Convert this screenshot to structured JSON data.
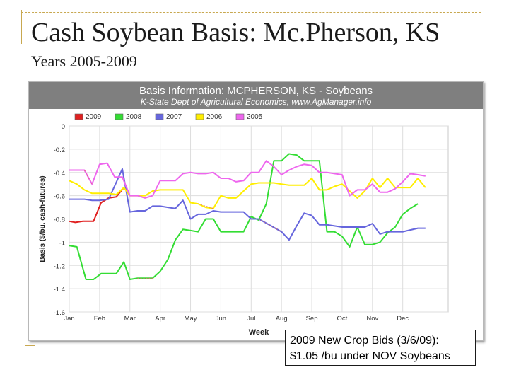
{
  "slide": {
    "title": "Cash Soybean Basis: Mc.Pherson, KS",
    "subtitle": "Years 2005-2009"
  },
  "note": {
    "line1": "2009 New Crop Bids (3/6/09):",
    "line2": "$1.05 /bu under NOV Soybeans"
  },
  "chart_data": {
    "type": "line",
    "title": "Basis Information: MCPHERSON, KS - Soybeans",
    "subtitle": "K-State Dept of Agricultural Economics, www.AgManager.info",
    "xlabel": "Week",
    "ylabel": "Basis ($/bu. cash-futures)",
    "x_tick_labels": [
      "Jan",
      "Feb",
      "Mar",
      "Apr",
      "May",
      "Jun",
      "Jul",
      "Aug",
      "Sep",
      "Oct",
      "Nov",
      "Dec"
    ],
    "y_ticks": [
      0,
      -0.2,
      -0.4,
      -0.6,
      -0.8,
      -1,
      -1.2,
      -1.4,
      -1.6
    ],
    "y_tick_labels": [
      "0",
      "-0.2",
      "-0.4",
      "-0.6",
      "-0.8",
      "-1",
      "-1.2",
      "-1.4",
      "-1.6"
    ],
    "xlim": [
      0,
      12.5
    ],
    "ylim": [
      -1.6,
      0
    ],
    "grid": true,
    "legend_position": "top",
    "series": [
      {
        "name": "2009",
        "color": "#e02020",
        "points": [
          [
            0,
            -0.82
          ],
          [
            0.2,
            -0.83
          ],
          [
            0.45,
            -0.82
          ],
          [
            0.8,
            -0.82
          ],
          [
            1.05,
            -0.66
          ],
          [
            1.3,
            -0.62
          ],
          [
            1.55,
            -0.61
          ],
          [
            1.8,
            -0.53
          ]
        ],
        "dashed": []
      },
      {
        "name": "2008",
        "color": "#33dd33",
        "points": [
          [
            0,
            -1.03
          ],
          [
            0.25,
            -1.04
          ],
          [
            0.55,
            -1.32
          ],
          [
            0.8,
            -1.32
          ],
          [
            1.05,
            -1.27
          ],
          [
            1.3,
            -1.27
          ],
          [
            1.55,
            -1.27
          ],
          [
            1.8,
            -1.17
          ],
          [
            2,
            -1.32
          ],
          [
            2.25,
            -1.31
          ],
          [
            2.75,
            -1.31
          ],
          [
            3,
            -1.25
          ],
          [
            3.25,
            -1.15
          ],
          [
            3.5,
            -0.98
          ],
          [
            3.75,
            -0.89
          ],
          [
            4,
            -0.9
          ],
          [
            4.25,
            -0.91
          ],
          [
            4.5,
            -0.8
          ],
          [
            4.75,
            -0.8
          ],
          [
            5,
            -0.91
          ],
          [
            5.25,
            -0.91
          ],
          [
            5.5,
            -0.91
          ],
          [
            5.75,
            -0.91
          ],
          [
            6,
            -0.78
          ],
          [
            6.25,
            -0.81
          ],
          [
            6.5,
            -0.67
          ],
          [
            6.75,
            -0.3
          ],
          [
            7,
            -0.3
          ],
          [
            7.25,
            -0.24
          ],
          [
            7.5,
            -0.25
          ],
          [
            7.75,
            -0.3
          ],
          [
            8,
            -0.3
          ],
          [
            8.25,
            -0.3
          ],
          [
            8.5,
            -0.91
          ],
          [
            8.75,
            -0.91
          ],
          [
            9,
            -0.95
          ],
          [
            9.25,
            -1.04
          ],
          [
            9.5,
            -0.87
          ],
          [
            9.75,
            -1.02
          ],
          [
            10,
            -1.02
          ],
          [
            10.25,
            -1.0
          ],
          [
            10.5,
            -0.92
          ],
          [
            10.75,
            -0.87
          ],
          [
            11,
            -0.76
          ],
          [
            11.25,
            -0.71
          ],
          [
            11.5,
            -0.67
          ]
        ],
        "dashed": [
          [
            2.25,
            -1.31
          ],
          [
            2.75,
            -1.31
          ]
        ]
      },
      {
        "name": "2007",
        "color": "#6666dd",
        "points": [
          [
            0,
            -0.63
          ],
          [
            0.5,
            -0.63
          ],
          [
            0.75,
            -0.64
          ],
          [
            1,
            -0.64
          ],
          [
            1.3,
            -0.63
          ],
          [
            1.75,
            -0.37
          ],
          [
            2,
            -0.74
          ],
          [
            2.25,
            -0.73
          ],
          [
            2.5,
            -0.73
          ],
          [
            2.75,
            -0.69
          ],
          [
            3,
            -0.69
          ],
          [
            3.25,
            -0.7
          ],
          [
            3.5,
            -0.71
          ],
          [
            3.75,
            -0.64
          ],
          [
            4,
            -0.8
          ],
          [
            4.25,
            -0.76
          ],
          [
            4.5,
            -0.76
          ],
          [
            4.75,
            -0.73
          ],
          [
            5,
            -0.74
          ],
          [
            5.25,
            -0.74
          ],
          [
            5.5,
            -0.74
          ],
          [
            5.75,
            -0.74
          ],
          [
            6,
            -0.8
          ],
          [
            6.25,
            -0.8
          ],
          [
            7,
            -0.91
          ],
          [
            7.25,
            -0.98
          ],
          [
            7.5,
            -0.86
          ],
          [
            7.75,
            -0.75
          ],
          [
            8,
            -0.77
          ],
          [
            8.25,
            -0.85
          ],
          [
            8.5,
            -0.85
          ],
          [
            8.75,
            -0.86
          ],
          [
            9,
            -0.87
          ],
          [
            9.25,
            -0.87
          ],
          [
            9.5,
            -0.87
          ],
          [
            9.75,
            -0.87
          ],
          [
            10,
            -0.84
          ],
          [
            10.25,
            -0.93
          ],
          [
            10.5,
            -0.91
          ],
          [
            10.75,
            -0.91
          ],
          [
            11,
            -0.91
          ],
          [
            11.5,
            -0.88
          ],
          [
            11.75,
            -0.88
          ]
        ],
        "dashed": [
          [
            6.25,
            -0.8
          ],
          [
            7,
            -0.91
          ]
        ]
      },
      {
        "name": "2006",
        "color": "#ffee00",
        "points": [
          [
            0,
            -0.47
          ],
          [
            0.25,
            -0.5
          ],
          [
            0.5,
            -0.55
          ],
          [
            0.75,
            -0.58
          ],
          [
            1,
            -0.58
          ],
          [
            1.3,
            -0.58
          ],
          [
            1.55,
            -0.59
          ],
          [
            1.8,
            -0.53
          ],
          [
            2,
            -0.6
          ],
          [
            2.5,
            -0.6
          ],
          [
            2.75,
            -0.56
          ],
          [
            3,
            -0.55
          ],
          [
            3.25,
            -0.55
          ],
          [
            3.5,
            -0.55
          ],
          [
            3.75,
            -0.55
          ],
          [
            4,
            -0.66
          ],
          [
            4.25,
            -0.67
          ],
          [
            4.5,
            -0.7
          ],
          [
            4.75,
            -0.71
          ],
          [
            5,
            -0.6
          ],
          [
            5.25,
            -0.62
          ],
          [
            5.5,
            -0.62
          ],
          [
            5.75,
            -0.56
          ],
          [
            6,
            -0.5
          ],
          [
            6.25,
            -0.49
          ],
          [
            6.5,
            -0.49
          ],
          [
            6.75,
            -0.49
          ],
          [
            7,
            -0.5
          ],
          [
            7.25,
            -0.51
          ],
          [
            7.5,
            -0.51
          ],
          [
            7.75,
            -0.51
          ],
          [
            8,
            -0.45
          ],
          [
            8.25,
            -0.55
          ],
          [
            8.5,
            -0.55
          ],
          [
            8.75,
            -0.52
          ],
          [
            9,
            -0.5
          ],
          [
            9.25,
            -0.56
          ],
          [
            9.5,
            -0.62
          ],
          [
            9.75,
            -0.56
          ],
          [
            10,
            -0.45
          ],
          [
            10.25,
            -0.53
          ],
          [
            10.5,
            -0.45
          ],
          [
            10.75,
            -0.53
          ],
          [
            11,
            -0.53
          ],
          [
            11.25,
            -0.53
          ],
          [
            11.5,
            -0.45
          ],
          [
            11.75,
            -0.53
          ]
        ],
        "dashed": []
      },
      {
        "name": "2005",
        "color": "#ee66ee",
        "points": [
          [
            0,
            -0.38
          ],
          [
            0.25,
            -0.38
          ],
          [
            0.5,
            -0.38
          ],
          [
            0.75,
            -0.5
          ],
          [
            1,
            -0.33
          ],
          [
            1.25,
            -0.32
          ],
          [
            1.5,
            -0.44
          ],
          [
            1.75,
            -0.44
          ],
          [
            2,
            -0.6
          ],
          [
            2.25,
            -0.6
          ],
          [
            2.5,
            -0.62
          ],
          [
            2.75,
            -0.6
          ],
          [
            3,
            -0.47
          ],
          [
            3.25,
            -0.47
          ],
          [
            3.5,
            -0.47
          ],
          [
            3.75,
            -0.41
          ],
          [
            4,
            -0.4
          ],
          [
            4.25,
            -0.41
          ],
          [
            4.5,
            -0.41
          ],
          [
            4.75,
            -0.4
          ],
          [
            5,
            -0.45
          ],
          [
            5.25,
            -0.45
          ],
          [
            5.5,
            -0.48
          ],
          [
            5.75,
            -0.47
          ],
          [
            6,
            -0.4
          ],
          [
            6.25,
            -0.4
          ],
          [
            6.5,
            -0.3
          ],
          [
            6.75,
            -0.35
          ],
          [
            7,
            -0.42
          ],
          [
            7.25,
            -0.38
          ],
          [
            7.5,
            -0.35
          ],
          [
            7.75,
            -0.33
          ],
          [
            8,
            -0.34
          ],
          [
            8.25,
            -0.4
          ],
          [
            8.5,
            -0.4
          ],
          [
            8.75,
            -0.41
          ],
          [
            9,
            -0.42
          ],
          [
            9.25,
            -0.6
          ],
          [
            9.5,
            -0.55
          ],
          [
            9.75,
            -0.55
          ],
          [
            10,
            -0.5
          ],
          [
            10.25,
            -0.57
          ],
          [
            10.5,
            -0.57
          ],
          [
            10.75,
            -0.54
          ],
          [
            11,
            -0.48
          ],
          [
            11.25,
            -0.41
          ],
          [
            11.5,
            -0.42
          ],
          [
            11.75,
            -0.43
          ]
        ],
        "dashed": [
          [
            0.5,
            -0.38
          ],
          [
            0.75,
            -0.5
          ],
          [
            4.25,
            -0.67
          ],
          [
            4.75,
            -0.71
          ]
        ]
      }
    ]
  }
}
